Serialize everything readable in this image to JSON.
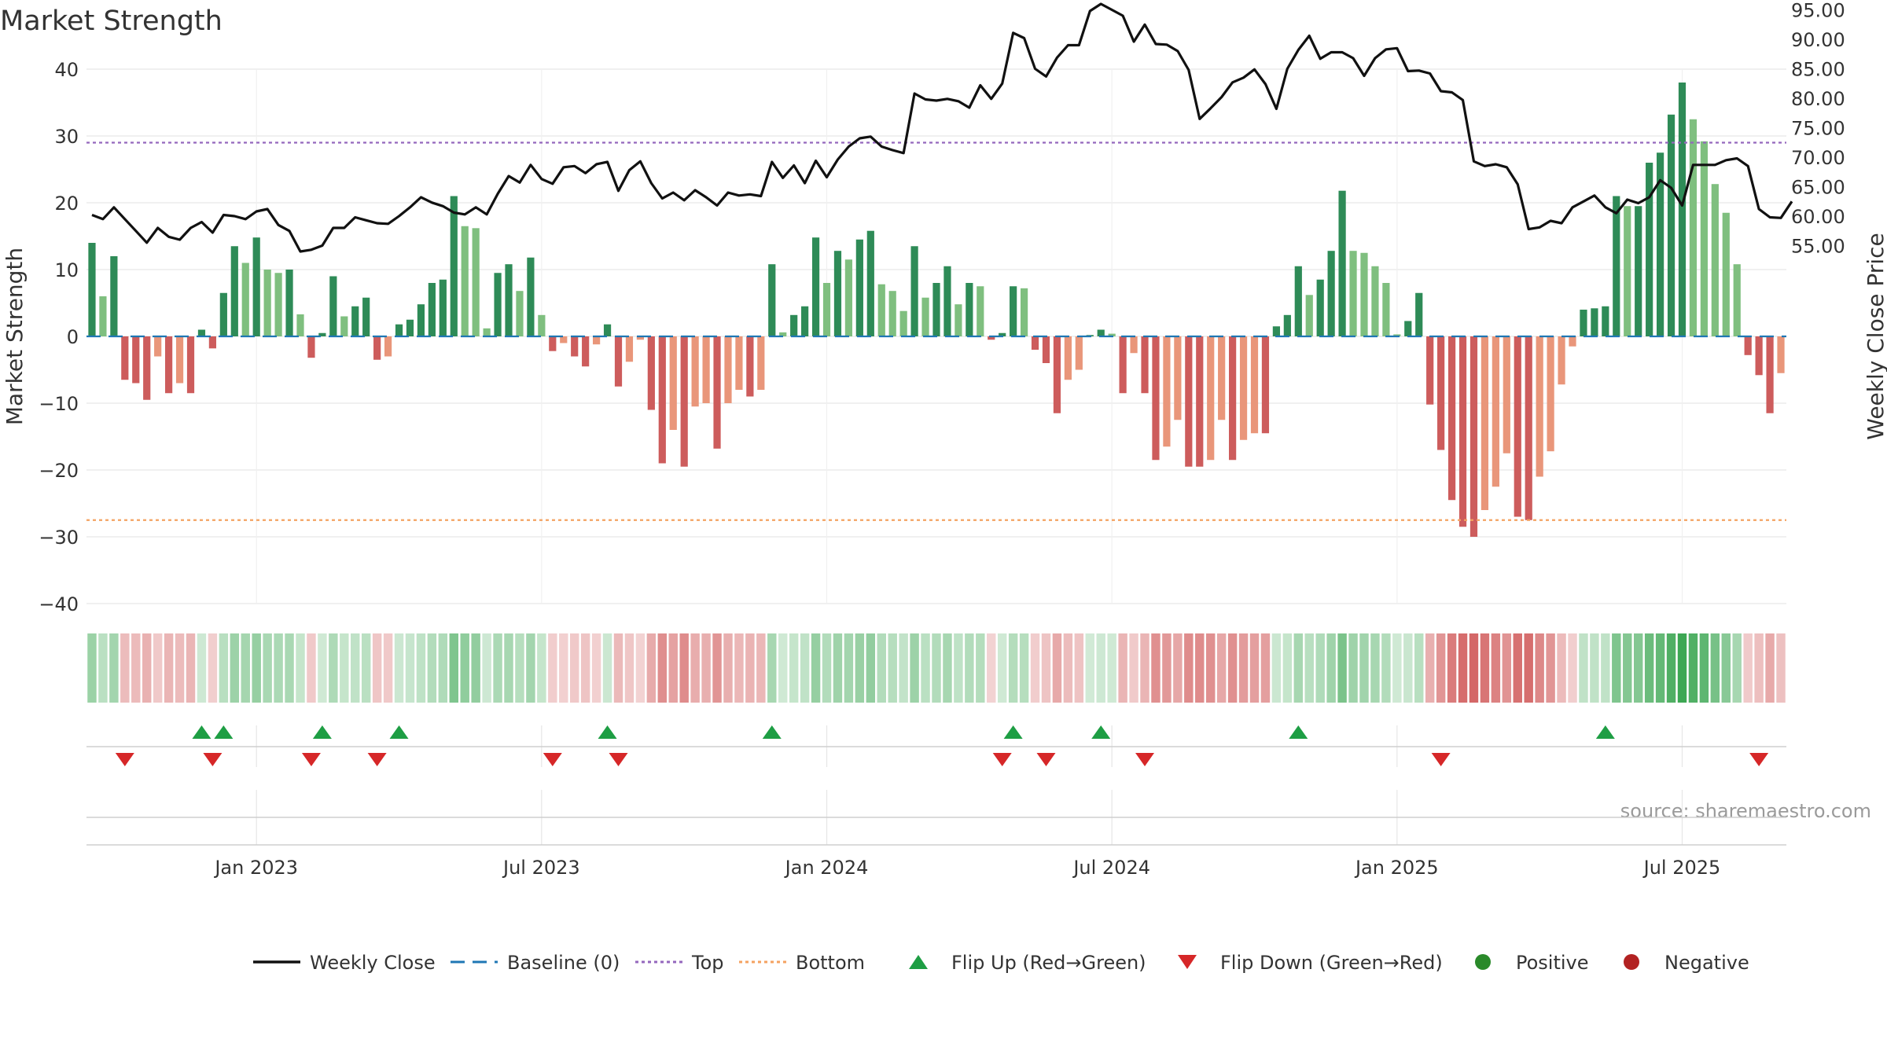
{
  "chart_data": {
    "type": "bar",
    "title": "Market Strength",
    "ylabel": "Market Strength",
    "y2label": "Weekly Close Price",
    "ylim": [
      -40,
      40
    ],
    "y2lim": [
      50,
      97.5
    ],
    "yticks": [
      "40",
      "30",
      "20",
      "10",
      "0",
      "−10",
      "−20",
      "−30",
      "−40"
    ],
    "y2ticks": [
      "95.00",
      "90.00",
      "85.00",
      "80.00",
      "75.00",
      "70.00",
      "65.00",
      "60.00",
      "55.00"
    ],
    "x_ticks": [
      "Jan 2023",
      "Jul 2023",
      "Jan 2024",
      "Jul 2024",
      "Jan 2025",
      "Jul 2025"
    ],
    "x_tick_weeks": [
      15,
      41,
      67,
      93,
      119,
      145
    ],
    "top_level": 29,
    "bottom_level": -27.5,
    "strength": [
      14,
      6,
      12,
      -6.5,
      -7,
      -9.5,
      -3,
      -8.5,
      -7,
      -8.5,
      1,
      -1.8,
      6.5,
      13.5,
      11,
      14.8,
      10,
      9.5,
      10,
      3.3,
      -3.2,
      0.5,
      9,
      3,
      4.5,
      5.8,
      -3.5,
      -3,
      1.8,
      2.5,
      4.8,
      8,
      8.5,
      21,
      16.5,
      16.2,
      1.2,
      9.5,
      10.8,
      6.8,
      11.8,
      3.2,
      -2.2,
      -1,
      -3,
      -4.5,
      -1.2,
      1.8,
      -7.5,
      -3.8,
      -0.5,
      -11,
      -19,
      -14,
      -19.5,
      -10.5,
      -10,
      -16.8,
      -10,
      -8,
      -9,
      -8,
      10.8,
      0.6,
      3.2,
      4.5,
      14.8,
      8,
      12.8,
      11.5,
      14.5,
      15.8,
      7.8,
      6.8,
      3.8,
      13.5,
      5.8,
      8,
      10.5,
      4.8,
      8,
      7.5,
      -0.5,
      0.5,
      7.5,
      7.2,
      -2,
      -4,
      -11.5,
      -6.5,
      -5,
      0.2,
      1,
      0.4,
      -8.5,
      -2.5,
      -8.5,
      -18.5,
      -16.5,
      -12.5,
      -19.5,
      -19.5,
      -18.5,
      -12.5,
      -18.5,
      -15.5,
      -14.5,
      -14.5,
      1.5,
      3.2,
      10.5,
      6.2,
      8.5,
      12.8,
      21.8,
      12.8,
      12.5,
      10.5,
      8,
      0.3,
      2.3,
      6.5,
      -10.2,
      -17,
      -24.5,
      -28.5,
      -30,
      -26,
      -22.5,
      -17.5,
      -27,
      -27.5,
      -21,
      -17.2,
      -7.2,
      -1.5,
      4,
      4.2,
      4.5,
      21,
      19.5,
      19.5,
      26,
      27.5,
      33.2,
      38,
      32.5,
      29.2,
      22.8,
      18.5,
      10.8,
      -2.8,
      -5.8,
      -11.5,
      -5.5
    ],
    "weekly_close": [
      60.2,
      59.5,
      61.5,
      59.5,
      57.5,
      55.5,
      58,
      56.5,
      56,
      58,
      59,
      57.2,
      60.2,
      60,
      59.5,
      60.8,
      61.2,
      58.5,
      57.5,
      54,
      54.3,
      55,
      58,
      58,
      59.8,
      59.3,
      58.8,
      58.7,
      60,
      61.5,
      63.2,
      62.3,
      61.7,
      60.6,
      60.3,
      61.5,
      60.3,
      63.8,
      66.8,
      65.7,
      68.7,
      66.3,
      65.5,
      68.3,
      68.5,
      67.3,
      68.8,
      69.2,
      64.3,
      67.8,
      69.3,
      65.6,
      63,
      64,
      62.7,
      64.4,
      63.2,
      61.8,
      64,
      63.5,
      63.7,
      63.4,
      69.2,
      66.5,
      68.6,
      65.6,
      69.4,
      66.6,
      69.6,
      71.8,
      73.2,
      73.5,
      71.8,
      71.2,
      70.7,
      80.8,
      79.8,
      79.6,
      79.9,
      79.5,
      78.4,
      82.2,
      79.9,
      82.5,
      91.1,
      90.2,
      85,
      83.7,
      86.9,
      89,
      89,
      94.8,
      96,
      95,
      94,
      89.6,
      92.5,
      89.2,
      89.1,
      88,
      84.8,
      76.5,
      78.3,
      80.2,
      82.7,
      83.5,
      84.9,
      82.4,
      78.2,
      85,
      88.2,
      90.6,
      86.7,
      87.8,
      87.8,
      86.8,
      83.8,
      86.8,
      88.3,
      88.5,
      84.6,
      84.7,
      84.2,
      81.2,
      81,
      79.7,
      69.3,
      68.5,
      68.8,
      68.3,
      65.4,
      57.8,
      58.1,
      59.2,
      58.8,
      61.5,
      62.5,
      63.5,
      61.5,
      60.5,
      62.8,
      62.2,
      63.2,
      66.1,
      64.8,
      61.8,
      68.7,
      68.7,
      68.7,
      69.5,
      69.8,
      68.5,
      61.2,
      59.8,
      59.7,
      62.5
    ],
    "flip_up": [
      10,
      12,
      21,
      28,
      47,
      62,
      84,
      92,
      110,
      138
    ],
    "flip_down": [
      3,
      11,
      20,
      26,
      42,
      48,
      83,
      87,
      96,
      123,
      152
    ],
    "legend": [
      {
        "label": "Weekly Close",
        "kind": "line"
      },
      {
        "label": "Baseline (0)",
        "kind": "dash"
      },
      {
        "label": "Top",
        "kind": "dot-purple"
      },
      {
        "label": "Bottom",
        "kind": "dot-orange"
      },
      {
        "label": "Flip Up (Red→Green)",
        "kind": "tri-up"
      },
      {
        "label": "Flip Down (Green→Red)",
        "kind": "tri-down"
      },
      {
        "label": "Positive",
        "kind": "circle-green"
      },
      {
        "label": "Negative",
        "kind": "circle-red"
      }
    ],
    "source": "source: sharemaestro.com",
    "colors": {
      "close_line": "#111111",
      "baseline": "#1f77b4",
      "top": "#9467bd",
      "bottom": "#f4a261",
      "flip_up": "#1e9e44",
      "flip_down": "#d62728",
      "positive": "#2a8a2a",
      "negative": "#b22222",
      "bar_pos_strong": "#2e8b57",
      "bar_pos_weak": "#7fbf7f",
      "bar_neg_strong": "#cd5c5c",
      "bar_neg_weak": "#e9967a"
    }
  }
}
